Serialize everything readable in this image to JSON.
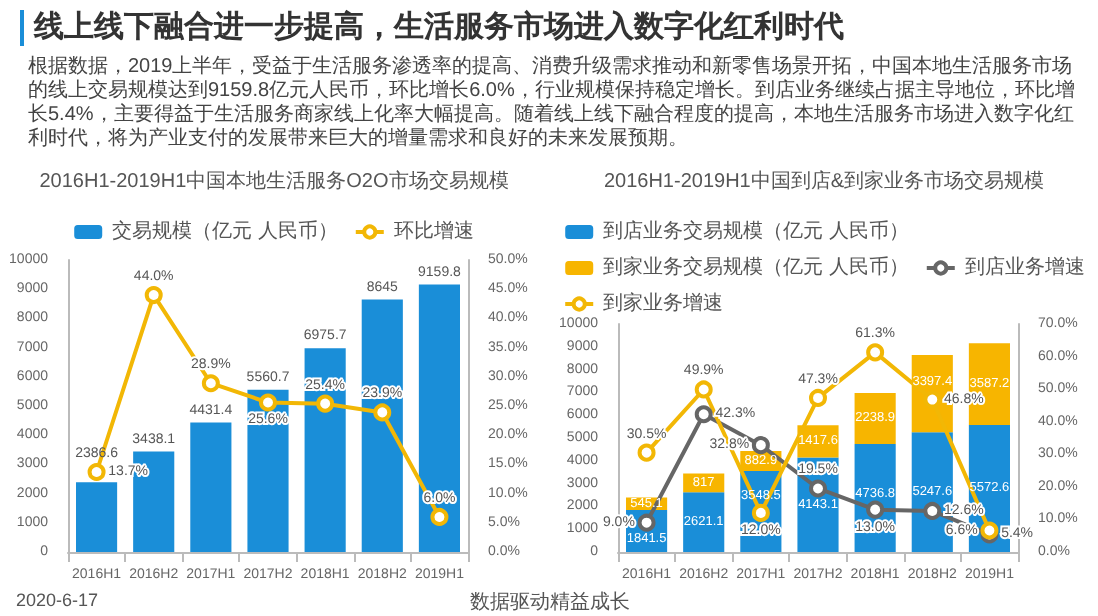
{
  "chart_data": [
    {
      "type": "other",
      "title": "线上线下融合进一步提高，生活服务市场进入数字化红利时代",
      "annotations": [
        "根据数据，2019上半年，受益于生活服务渗透率的提高、消费升级需求推动和新零售场景开拓，中国本地生活服务市场的线上交易规模达到9159.8亿元人民币，环比增长6.0%，行业规模保持稳定增长。到店业务继续占据主导地位，环比增长5.4%，主要得益于生活服务商家线上化率大幅提高。随着线上线下融合程度的提高，本地生活服务市场进入数字化红利时代，将为产业支付的发展带来巨大的增量需求和良好的未来发展预期。",
        "2020-6-17",
        "数据驱动精益成长"
      ]
    },
    {
      "type": "bar",
      "title": "2016H1-2019H1中国本地生活服务O2O市场交易规模",
      "categories": [
        "2016H1",
        "2016H2",
        "2017H1",
        "2017H2",
        "2018H1",
        "2018H2",
        "2019H1"
      ],
      "series": [
        {
          "name": "交易规模（亿元 人民币）",
          "color": "#1a8ed8",
          "values": [
            2386.6,
            3438.1,
            4431.4,
            5560.7,
            6975.7,
            8645,
            9159.8
          ],
          "value_labels": [
            "2386.6",
            "3438.1",
            "4431.4",
            "5560.7",
            "6975.7",
            "8645",
            "9159.8"
          ]
        },
        {
          "name": "环比增速",
          "type": "line",
          "axis": "y2",
          "color": "#f2b705",
          "values": [
            13.7,
            44.0,
            28.9,
            25.6,
            25.4,
            23.9,
            6.0
          ],
          "value_labels": [
            "13.7%",
            "44.0%",
            "28.9%",
            "25.6%",
            "25.4%",
            "23.9%",
            "6.0%"
          ]
        }
      ],
      "ylim": [
        0,
        10000
      ],
      "yticks": [
        0,
        1000,
        2000,
        3000,
        4000,
        5000,
        6000,
        7000,
        8000,
        9000,
        10000
      ],
      "y2lim": [
        0,
        50
      ],
      "y2ticks": [
        {
          "value": 0,
          "label": "0.0%"
        },
        {
          "value": 5,
          "label": "5.0%"
        },
        {
          "value": 10,
          "label": "10.0%"
        },
        {
          "value": 15,
          "label": "15.0%"
        },
        {
          "value": 20,
          "label": "20.0%"
        },
        {
          "value": 25,
          "label": "25.0%"
        },
        {
          "value": 30,
          "label": "30.0%"
        },
        {
          "value": 35,
          "label": "35.0%"
        },
        {
          "value": 40,
          "label": "40.0%"
        },
        {
          "value": 45,
          "label": "45.0%"
        },
        {
          "value": 50,
          "label": "50.0%"
        }
      ],
      "legend": "top",
      "marker": "circle",
      "grid": false
    },
    {
      "type": "bar",
      "stacked": true,
      "title": "2016H1-2019H1中国到店&到家业务市场交易规模",
      "categories": [
        "2016H1",
        "2016H2",
        "2017H1",
        "2017H2",
        "2018H1",
        "2018H2",
        "2019H1"
      ],
      "series": [
        {
          "name": "到店业务交易规模（亿元 人民币）",
          "color": "#1a8ed8",
          "values": [
            1841.5,
            2621.1,
            3548.5,
            4143.1,
            4736.8,
            5247.6,
            5572.6
          ],
          "value_labels": [
            "1841.5",
            "2621.1",
            "3548.5",
            "4143.1",
            "4736.8",
            "5247.6",
            "5572.6"
          ]
        },
        {
          "name": "到家业务交易规模（亿元 人民币）",
          "color": "#f7b500",
          "values": [
            545.1,
            817,
            882.9,
            1417.6,
            2238.9,
            3397.4,
            3587.2
          ],
          "value_labels": [
            "545.1",
            "817",
            "882.9",
            "1417.6",
            "2238.9",
            "3397.4",
            "3587.2"
          ]
        },
        {
          "name": "到店业务增速",
          "type": "line",
          "axis": "y2",
          "color": "#666666",
          "values": [
            9.0,
            42.3,
            32.8,
            19.5,
            13.0,
            12.6,
            5.4
          ],
          "value_labels": [
            "9.0%",
            "42.3%",
            "32.8%",
            "19.5%",
            "13.0%",
            "12.6%",
            "5.4%"
          ]
        },
        {
          "name": "到家业务增速",
          "type": "line",
          "axis": "y2",
          "color": "#f2b705",
          "values": [
            30.5,
            49.9,
            12.0,
            47.3,
            61.3,
            46.8,
            6.6
          ],
          "value_labels": [
            "30.5%",
            "49.9%",
            "12.0%",
            "47.3%",
            "61.3%",
            "46.8%",
            "6.6%"
          ]
        }
      ],
      "ylim": [
        0,
        10000
      ],
      "yticks": [
        0,
        1000,
        2000,
        3000,
        4000,
        5000,
        6000,
        7000,
        8000,
        9000,
        10000
      ],
      "y2lim": [
        0,
        70
      ],
      "y2ticks": [
        {
          "value": 0,
          "label": "0.0%"
        },
        {
          "value": 10,
          "label": "10.0%"
        },
        {
          "value": 20,
          "label": "20.0%"
        },
        {
          "value": 30,
          "label": "30.0%"
        },
        {
          "value": 40,
          "label": "40.0%"
        },
        {
          "value": 50,
          "label": "50.0%"
        },
        {
          "value": 60,
          "label": "60.0%"
        },
        {
          "value": 70,
          "label": "70.0%"
        }
      ],
      "legend": "top",
      "marker": "circle",
      "grid": false
    }
  ]
}
